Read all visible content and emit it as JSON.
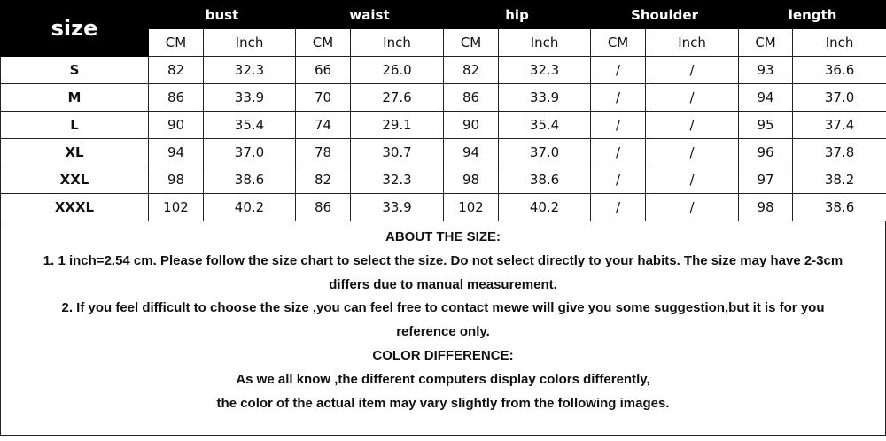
{
  "table": {
    "size_header": "size",
    "groups": [
      "bust",
      "waist",
      "hip",
      "Shoulder",
      "length"
    ],
    "units": [
      "CM",
      "Inch"
    ],
    "rows": [
      {
        "size": "S",
        "values": [
          "82",
          "32.3",
          "66",
          "26.0",
          "82",
          "32.3",
          "/",
          "/",
          "93",
          "36.6"
        ]
      },
      {
        "size": "M",
        "values": [
          "86",
          "33.9",
          "70",
          "27.6",
          "86",
          "33.9",
          "/",
          "/",
          "94",
          "37.0"
        ]
      },
      {
        "size": "L",
        "values": [
          "90",
          "35.4",
          "74",
          "29.1",
          "90",
          "35.4",
          "/",
          "/",
          "95",
          "37.4"
        ]
      },
      {
        "size": "XL",
        "values": [
          "94",
          "37.0",
          "78",
          "30.7",
          "94",
          "37.0",
          "/",
          "/",
          "96",
          "37.8"
        ]
      },
      {
        "size": "XXL",
        "values": [
          "98",
          "38.6",
          "82",
          "32.3",
          "98",
          "38.6",
          "/",
          "/",
          "97",
          "38.2"
        ]
      },
      {
        "size": "XXXL",
        "values": [
          "102",
          "40.2",
          "86",
          "33.9",
          "102",
          "40.2",
          "/",
          "/",
          "98",
          "38.6"
        ]
      }
    ]
  },
  "notes": [
    "ABOUT THE SIZE:",
    "1. 1 inch=2.54 cm. Please follow the size chart to select the size. Do not select directly to your habits. The size may have 2-3cm",
    "differs due to manual measurement.",
    "2. If you feel difficult to choose the size ,you can feel free to contact mewe will give you some suggestion,but it is for you",
    "reference only.",
    "COLOR DIFFERENCE:",
    "As we all know ,the different computers display colors differently,",
    "the color of the actual item may vary slightly from the following images."
  ]
}
